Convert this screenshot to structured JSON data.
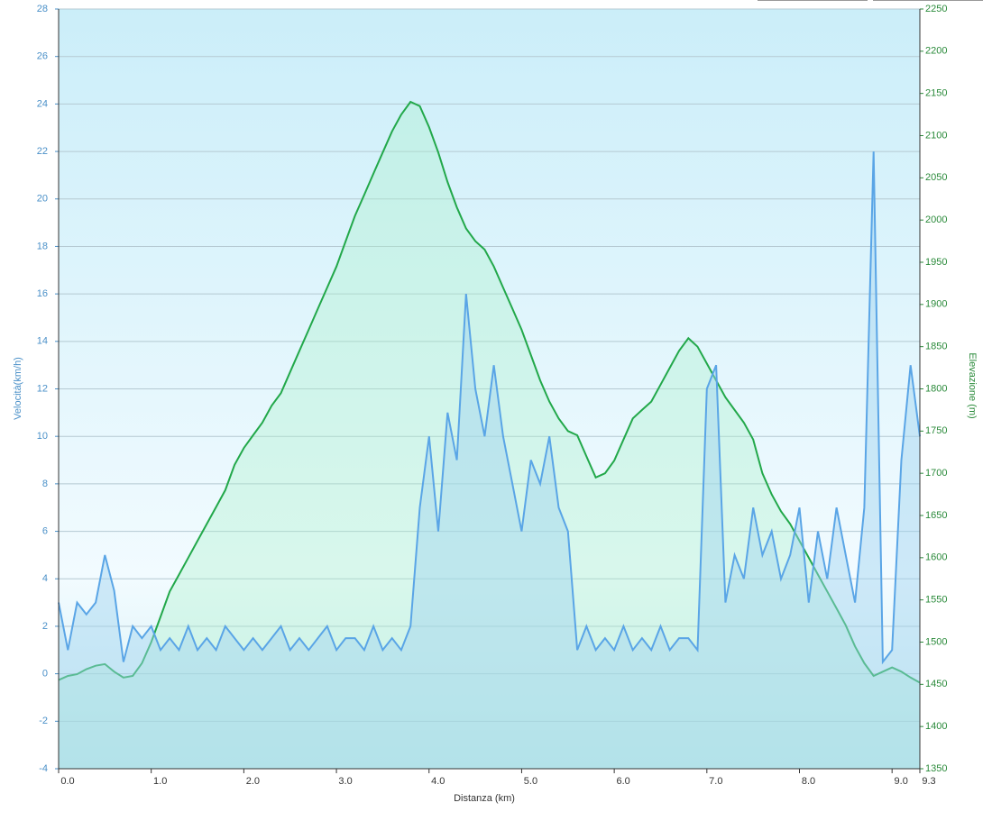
{
  "chart_data": {
    "type": "line",
    "x_label": "Distanza  (km)",
    "y_label": "Velocità(km/h)",
    "y2_label": "Elevazione (m)",
    "x": [
      0,
      0.1,
      0.2,
      0.3,
      0.4,
      0.5,
      0.6,
      0.7,
      0.8,
      0.9,
      1.0,
      1.1,
      1.2,
      1.3,
      1.4,
      1.5,
      1.6,
      1.7,
      1.8,
      1.9,
      2.0,
      2.1,
      2.2,
      2.3,
      2.4,
      2.5,
      2.6,
      2.7,
      2.8,
      2.9,
      3.0,
      3.1,
      3.2,
      3.3,
      3.4,
      3.5,
      3.6,
      3.7,
      3.8,
      3.9,
      4.0,
      4.1,
      4.2,
      4.3,
      4.4,
      4.5,
      4.6,
      4.7,
      4.8,
      4.9,
      5.0,
      5.1,
      5.2,
      5.3,
      5.4,
      5.5,
      5.6,
      5.7,
      5.8,
      5.9,
      6.0,
      6.1,
      6.2,
      6.3,
      6.4,
      6.5,
      6.6,
      6.7,
      6.8,
      6.9,
      7.0,
      7.1,
      7.2,
      7.3,
      7.4,
      7.5,
      7.6,
      7.7,
      7.8,
      7.9,
      8.0,
      8.1,
      8.2,
      8.3,
      8.4,
      8.5,
      8.6,
      8.7,
      8.8,
      8.9,
      9.0,
      9.1,
      9.2,
      9.3
    ],
    "series": [
      {
        "name": "Velocità",
        "color": "#5aa5e6",
        "axis": "y",
        "values": [
          3,
          1,
          3,
          2.5,
          3,
          5,
          3.5,
          0.5,
          2,
          1.5,
          2,
          1,
          1.5,
          1,
          2,
          1,
          1.5,
          1,
          2,
          1.5,
          1,
          1.5,
          1,
          1.5,
          2,
          1,
          1.5,
          1,
          1.5,
          2,
          1,
          1.5,
          1.5,
          1,
          2,
          1,
          1.5,
          1,
          2,
          7,
          10,
          6,
          11,
          9,
          16,
          12,
          10,
          13,
          10,
          8,
          6,
          9,
          8,
          10,
          7,
          6,
          1,
          2,
          1,
          1.5,
          1,
          2,
          1,
          1.5,
          1,
          2,
          1,
          1.5,
          1.5,
          1,
          12,
          13,
          3,
          5,
          4,
          7,
          5,
          6,
          4,
          5,
          7,
          3,
          6,
          4,
          7,
          5,
          3,
          7,
          22,
          0.5,
          1,
          9,
          13,
          10
        ]
      },
      {
        "name": "Elevazione",
        "color": "#22a84a",
        "axis": "y2",
        "values": [
          1455,
          1460,
          1462,
          1468,
          1472,
          1474,
          1465,
          1458,
          1460,
          1475,
          1500,
          1530,
          1560,
          1580,
          1600,
          1620,
          1640,
          1660,
          1680,
          1710,
          1730,
          1745,
          1760,
          1780,
          1795,
          1820,
          1845,
          1870,
          1895,
          1920,
          1945,
          1975,
          2005,
          2030,
          2055,
          2080,
          2105,
          2125,
          2140,
          2135,
          2110,
          2080,
          2045,
          2015,
          1990,
          1975,
          1965,
          1945,
          1920,
          1895,
          1870,
          1840,
          1810,
          1785,
          1765,
          1750,
          1745,
          1720,
          1695,
          1700,
          1715,
          1740,
          1765,
          1775,
          1785,
          1805,
          1825,
          1845,
          1860,
          1850,
          1830,
          1810,
          1790,
          1775,
          1760,
          1740,
          1700,
          1675,
          1655,
          1640,
          1620,
          1600,
          1580,
          1560,
          1540,
          1520,
          1495,
          1475,
          1460,
          1465,
          1470,
          1465,
          1458,
          1452
        ]
      }
    ],
    "xlim": [
      0,
      9.3
    ],
    "xticks": [
      {
        "value": 0,
        "label": "0.0"
      },
      {
        "value": 1,
        "label": "1.0"
      },
      {
        "value": 2,
        "label": "2.0"
      },
      {
        "value": 3,
        "label": "3.0"
      },
      {
        "value": 4,
        "label": "4.0"
      },
      {
        "value": 5,
        "label": "5.0"
      },
      {
        "value": 6,
        "label": "6.0"
      },
      {
        "value": 7,
        "label": "7.0"
      },
      {
        "value": 8,
        "label": "8.0"
      },
      {
        "value": 9,
        "label": "9.0"
      },
      9.3
    ],
    "ylim": [
      -4,
      28
    ],
    "yticks": [
      -4,
      -2,
      0,
      2,
      4,
      6,
      8,
      10,
      12,
      14,
      16,
      18,
      20,
      22,
      24,
      26,
      28
    ],
    "y2lim": [
      1350,
      2250
    ],
    "y2ticks": [
      1350,
      1400,
      1450,
      1500,
      1550,
      1600,
      1650,
      1700,
      1750,
      1800,
      1850,
      1900,
      1950,
      2000,
      2050,
      2100,
      2150,
      2200,
      2250
    ],
    "grid": true
  }
}
